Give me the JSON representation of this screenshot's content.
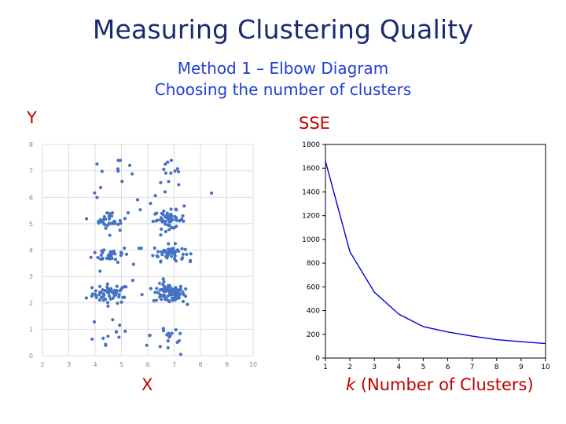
{
  "title": "Measuring Clustering Quality",
  "subtitles": [
    "Method 1 – Elbow Diagram",
    "Choosing the number of clusters"
  ],
  "colors": {
    "title": "#1a2a6e",
    "subtitle": "#1f3fd6",
    "label": "#c00000",
    "scatter_points": "#4472c4",
    "elbow_line": "#0000dd"
  },
  "chart_data": [
    {
      "type": "scatter",
      "title": "",
      "ylabel": "Y",
      "xlabel": "X",
      "xlim": [
        2,
        10
      ],
      "ylim": [
        0,
        8
      ],
      "xticks": [
        2,
        3,
        4,
        5,
        6,
        7,
        8,
        9,
        10
      ],
      "yticks": [
        0,
        1,
        2,
        3,
        4,
        5,
        6,
        7,
        8
      ],
      "grid": true,
      "clusters": [
        {
          "cx": 4.6,
          "cy": 2.35,
          "sx": 0.35,
          "sy": 0.18,
          "n": 55
        },
        {
          "cx": 6.8,
          "cy": 2.35,
          "sx": 0.3,
          "sy": 0.18,
          "n": 85
        },
        {
          "cx": 4.6,
          "cy": 3.85,
          "sx": 0.35,
          "sy": 0.15,
          "n": 32
        },
        {
          "cx": 6.8,
          "cy": 3.9,
          "sx": 0.3,
          "sy": 0.15,
          "n": 55
        },
        {
          "cx": 4.6,
          "cy": 5.15,
          "sx": 0.32,
          "sy": 0.15,
          "n": 30
        },
        {
          "cx": 6.8,
          "cy": 5.15,
          "sx": 0.3,
          "sy": 0.17,
          "n": 55
        },
        {
          "cx": 4.6,
          "cy": 6.8,
          "sx": 0.45,
          "sy": 0.35,
          "n": 10
        },
        {
          "cx": 6.8,
          "cy": 6.6,
          "sx": 0.35,
          "sy": 0.45,
          "n": 15
        },
        {
          "cx": 4.6,
          "cy": 0.9,
          "sx": 0.45,
          "sy": 0.45,
          "n": 12
        },
        {
          "cx": 6.8,
          "cy": 0.8,
          "sx": 0.35,
          "sy": 0.45,
          "n": 16
        },
        {
          "cx": 5.7,
          "cy": 3.2,
          "sx": 1.7,
          "sy": 1.9,
          "n": 25
        }
      ]
    },
    {
      "type": "line",
      "title": "",
      "ylabel": "SSE",
      "xlabel": "k (Number of Clusters)",
      "xlabel_italic": "k",
      "xlabel_rest": " (Number of Clusters)",
      "x": [
        1,
        2,
        3,
        4,
        5,
        6,
        7,
        8,
        9,
        10
      ],
      "y": [
        1660,
        895,
        555,
        370,
        265,
        220,
        185,
        155,
        138,
        122
      ],
      "xlim": [
        1,
        10
      ],
      "ylim": [
        0,
        1800
      ],
      "xticks": [
        1,
        2,
        3,
        4,
        5,
        6,
        7,
        8,
        9,
        10
      ],
      "yticks": [
        0,
        200,
        400,
        600,
        800,
        1000,
        1200,
        1400,
        1600,
        1800
      ],
      "grid": false
    }
  ]
}
